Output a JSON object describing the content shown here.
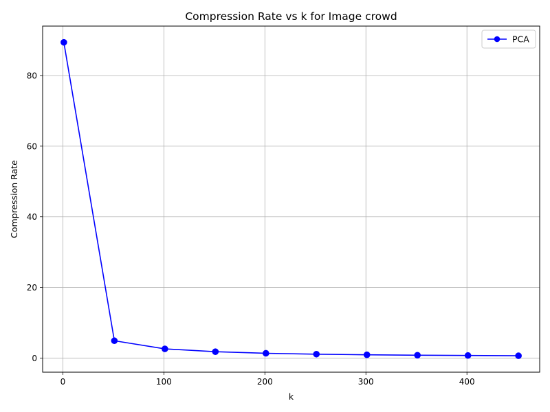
{
  "chart_data": {
    "type": "line",
    "title": "Compression Rate vs k for Image crowd",
    "xlabel": "k",
    "ylabel": "Compression Rate",
    "xlim": [
      -20,
      472
    ],
    "ylim": [
      -4,
      94
    ],
    "xticks": [
      0,
      100,
      200,
      300,
      400
    ],
    "yticks": [
      0,
      20,
      40,
      60,
      80
    ],
    "grid": true,
    "legend_position": "top-right",
    "series": [
      {
        "name": "PCA",
        "color": "#0000ff",
        "marker": "circle",
        "x": [
          1,
          51,
          101,
          151,
          201,
          251,
          301,
          351,
          401,
          451
        ],
        "y": [
          89.4,
          4.9,
          2.6,
          1.8,
          1.35,
          1.1,
          0.92,
          0.8,
          0.72,
          0.65
        ]
      }
    ]
  }
}
